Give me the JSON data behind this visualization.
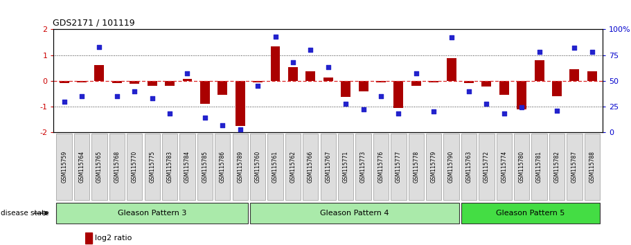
{
  "title": "GDS2171 / 101119",
  "samples": [
    "GSM115759",
    "GSM115764",
    "GSM115765",
    "GSM115768",
    "GSM115770",
    "GSM115775",
    "GSM115783",
    "GSM115784",
    "GSM115785",
    "GSM115786",
    "GSM115789",
    "GSM115760",
    "GSM115761",
    "GSM115762",
    "GSM115766",
    "GSM115767",
    "GSM115771",
    "GSM115773",
    "GSM115776",
    "GSM115777",
    "GSM115778",
    "GSM115779",
    "GSM115790",
    "GSM115763",
    "GSM115772",
    "GSM115774",
    "GSM115780",
    "GSM115781",
    "GSM115782",
    "GSM115787",
    "GSM115788"
  ],
  "log2_ratio": [
    -0.08,
    -0.05,
    0.62,
    -0.08,
    -0.1,
    -0.2,
    -0.2,
    0.08,
    -0.9,
    -0.55,
    -1.75,
    -0.05,
    1.35,
    0.52,
    0.38,
    0.12,
    -0.62,
    -0.4,
    -0.05,
    -1.05,
    -0.2,
    -0.05,
    0.88,
    -0.08,
    -0.22,
    -0.55,
    -1.1,
    0.8,
    -0.6,
    0.45,
    0.38
  ],
  "percentile": [
    30,
    35,
    83,
    35,
    40,
    33,
    18,
    57,
    14,
    7,
    3,
    45,
    93,
    68,
    80,
    63,
    28,
    22,
    35,
    18,
    57,
    20,
    92,
    40,
    28,
    18,
    24,
    78,
    21,
    82,
    78
  ],
  "groups": [
    {
      "label": "Gleason Pattern 3",
      "start": 0,
      "end": 10,
      "color": "#AAEAAA"
    },
    {
      "label": "Gleason Pattern 4",
      "start": 11,
      "end": 22,
      "color": "#AAEAAA"
    },
    {
      "label": "Gleason Pattern 5",
      "start": 23,
      "end": 30,
      "color": "#44DD44"
    }
  ],
  "bar_color": "#AA0000",
  "dot_color": "#2222CC",
  "zero_line_color": "#DD2222",
  "dotted_line_color": "#333333",
  "ylim": [
    -2,
    2
  ],
  "y2lim": [
    0,
    100
  ],
  "yticks_left": [
    -2,
    -1,
    0,
    1,
    2
  ],
  "yticks_right": [
    0,
    25,
    50,
    75,
    100
  ],
  "bar_width": 0.55
}
